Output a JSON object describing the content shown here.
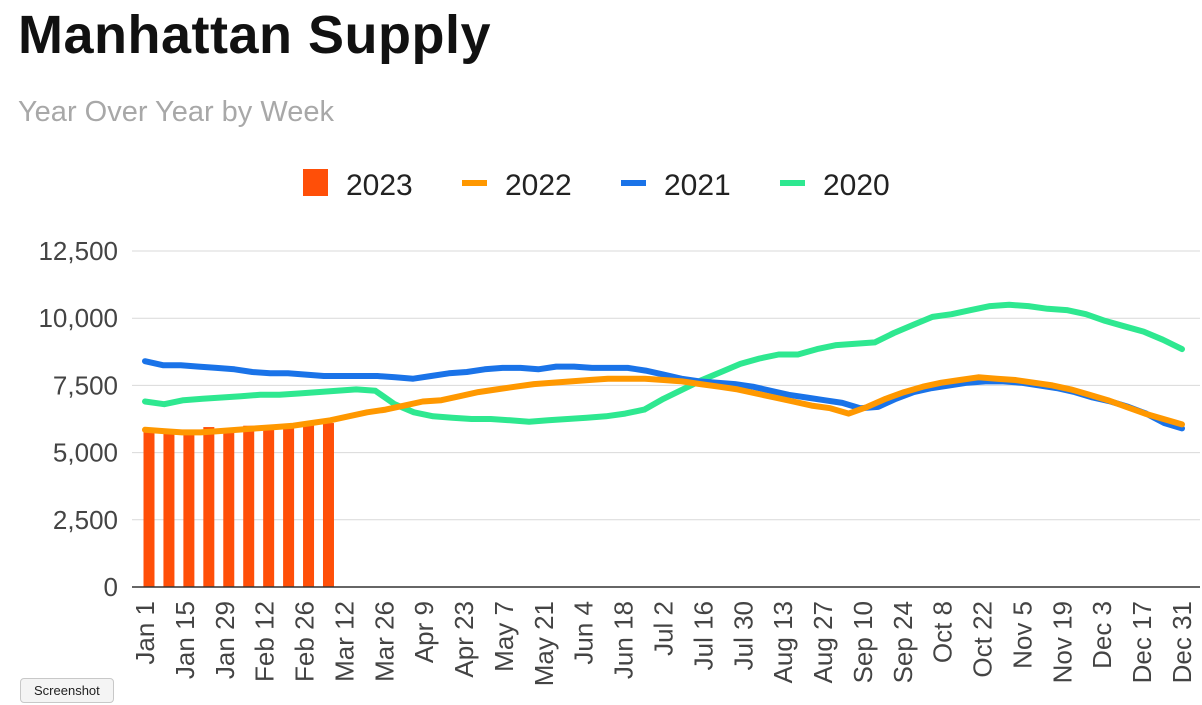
{
  "chart_data": {
    "type": "bar+line",
    "title": "Manhattan Supply",
    "subtitle": "Year Over Year by Week",
    "xlabel": "",
    "ylabel": "",
    "ylim": [
      0,
      12500
    ],
    "yticks": [
      0,
      2500,
      5000,
      7500,
      10000,
      12500
    ],
    "ytick_labels": [
      "0",
      "2,500",
      "5,000",
      "7,500",
      "10,000",
      "12,500"
    ],
    "xticks": [
      "Jan 1",
      "Jan 15",
      "Jan 29",
      "Feb 12",
      "Feb 26",
      "Mar 12",
      "Mar 26",
      "Apr 9",
      "Apr 23",
      "May 7",
      "May 21",
      "Jun 4",
      "Jun 18",
      "Jul 2",
      "Jul 16",
      "Jul 30",
      "Aug 13",
      "Aug 27",
      "Sep 10",
      "Sep 24",
      "Oct 8",
      "Oct 22",
      "Nov 5",
      "Nov 19",
      "Dec 3",
      "Dec 17",
      "Dec 31"
    ],
    "grid": true,
    "legend_position": "top",
    "series": [
      {
        "name": "2023",
        "kind": "bar",
        "color": "#ff4f08",
        "values": [
          5800,
          5780,
          5850,
          5950,
          5900,
          6000,
          5950,
          5980,
          6050,
          6100
        ]
      },
      {
        "name": "2022",
        "kind": "line",
        "color": "#ff9800",
        "values": [
          5850,
          5800,
          5750,
          5750,
          5800,
          5850,
          5900,
          5950,
          6000,
          6100,
          6200,
          6350,
          6500,
          6600,
          6750,
          6900,
          6950,
          7100,
          7250,
          7350,
          7450,
          7550,
          7600,
          7650,
          7700,
          7750,
          7750,
          7750,
          7700,
          7650,
          7550,
          7450,
          7350,
          7200,
          7050,
          6900,
          6750,
          6650,
          6450,
          6700,
          7000,
          7250,
          7450,
          7600,
          7700,
          7800,
          7750,
          7700,
          7600,
          7500,
          7350,
          7150,
          6950,
          6700,
          6450,
          6250,
          6050
        ]
      },
      {
        "name": "2021",
        "kind": "line",
        "color": "#1a73e8",
        "values": [
          8400,
          8250,
          8250,
          8200,
          8150,
          8100,
          8000,
          7950,
          7950,
          7900,
          7850,
          7850,
          7850,
          7850,
          7800,
          7750,
          7850,
          7950,
          8000,
          8100,
          8150,
          8150,
          8100,
          8200,
          8200,
          8150,
          8150,
          8150,
          8050,
          7900,
          7750,
          7650,
          7600,
          7550,
          7450,
          7300,
          7150,
          7050,
          6950,
          6850,
          6650,
          6700,
          7000,
          7250,
          7400,
          7500,
          7600,
          7650,
          7650,
          7600,
          7500,
          7400,
          7250,
          7050,
          6900,
          6700,
          6450,
          6100,
          5900
        ]
      },
      {
        "name": "2020",
        "kind": "line",
        "color": "#2ee890",
        "values": [
          6900,
          6800,
          6950,
          7000,
          7050,
          7100,
          7150,
          7150,
          7200,
          7250,
          7300,
          7350,
          7300,
          6800,
          6500,
          6350,
          6300,
          6250,
          6250,
          6200,
          6150,
          6200,
          6250,
          6300,
          6350,
          6450,
          6600,
          7000,
          7350,
          7700,
          8000,
          8300,
          8500,
          8650,
          8650,
          8850,
          9000,
          9050,
          9100,
          9450,
          9750,
          10050,
          10150,
          10300,
          10450,
          10500,
          10450,
          10350,
          10300,
          10150,
          9900,
          9700,
          9500,
          9200,
          8850
        ]
      }
    ]
  },
  "ui": {
    "screenshot_button_label": "Screenshot"
  }
}
